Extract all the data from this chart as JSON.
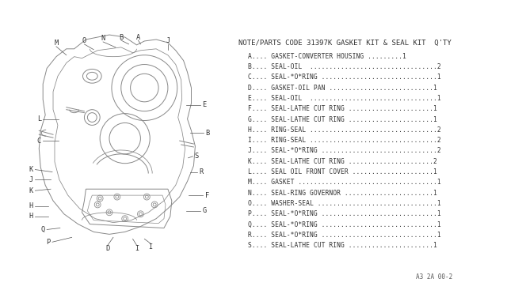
{
  "background_color": "#f0f0f0",
  "title_text": "NOTE/PARTS CODE 31397K GASKET KIT & SEAL KIT  Q'TY",
  "parts_list": [
    {
      "label": "A....",
      "desc": "GASKET-CONVERTER HOUSING .........",
      "qty": "1"
    },
    {
      "label": "B....",
      "desc": "SEAL-OIL  .................................",
      "qty": "2"
    },
    {
      "label": "C....",
      "desc": "SEAL-*O*RING ..............................",
      "qty": "1"
    },
    {
      "label": "D....",
      "desc": "GASKET-OIL PAN ...........................",
      "qty": "1"
    },
    {
      "label": "E....",
      "desc": "SEAL-OIL  .................................",
      "qty": "1"
    },
    {
      "label": "F....",
      "desc": "SEAL-LATHE CUT RING ......................",
      "qty": "1"
    },
    {
      "label": "G....",
      "desc": "SEAL-LATHE CUT RING ......................",
      "qty": "1"
    },
    {
      "label": "H....",
      "desc": "RING-SEAL .................................",
      "qty": "2"
    },
    {
      "label": "I....",
      "desc": "RING-SEAL .................................",
      "qty": "2"
    },
    {
      "label": "J....",
      "desc": "SEAL-*O*RING ..............................",
      "qty": "2"
    },
    {
      "label": "K....",
      "desc": "SEAL-LATHE CUT RING ......................",
      "qty": "2"
    },
    {
      "label": "L....",
      "desc": "SEAL OIL FRONT COVER .....................",
      "qty": "1"
    },
    {
      "label": "M....",
      "desc": "GASKET ....................................",
      "qty": "1"
    },
    {
      "label": "N....",
      "desc": "SEAL-RING GOVERNOR .......................",
      "qty": "1"
    },
    {
      "label": "O....",
      "desc": "WASHER-SEAL ...............................",
      "qty": "1"
    },
    {
      "label": "P....",
      "desc": "SEAL-*O*RING ..............................",
      "qty": "1"
    },
    {
      "label": "Q....",
      "desc": "SEAL-*O*RING ..............................",
      "qty": "1"
    },
    {
      "label": "R....",
      "desc": "SEAL-*O*RING ..............................",
      "qty": "1"
    },
    {
      "label": "S....",
      "desc": "SEAL-LATHE CUT RING ......................",
      "qty": "1"
    }
  ],
  "footer_text": "A3 2A 00-2",
  "diagram_color": "#888888",
  "text_color": "#555555",
  "font_size_title": 6.5,
  "font_size_parts": 5.8,
  "font_size_labels": 6.0
}
